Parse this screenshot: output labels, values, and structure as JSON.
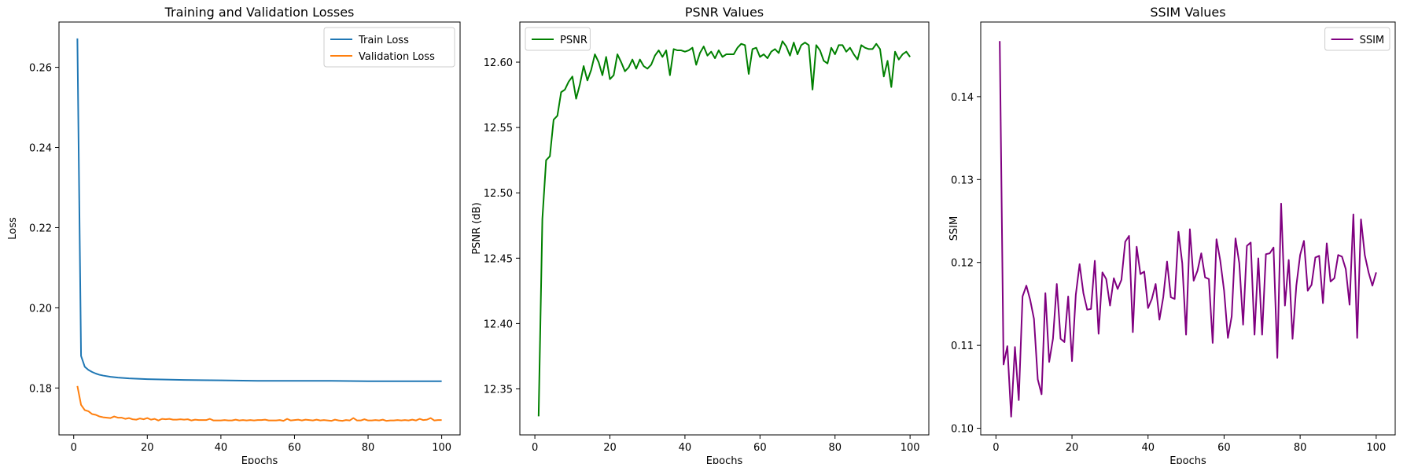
{
  "chart_data": [
    {
      "type": "line",
      "title": "Training and Validation Losses",
      "xlabel": "Epochs",
      "ylabel": "Loss",
      "xlim": [
        -4,
        105
      ],
      "ylim": [
        0.1683,
        0.2713
      ],
      "xticks": [
        0,
        20,
        40,
        60,
        80,
        100
      ],
      "yticks": [
        0.18,
        0.2,
        0.22,
        0.24,
        0.26
      ],
      "tick_decimals": 2,
      "grid": false,
      "legend_position": "upper right",
      "series": [
        {
          "name": "Train Loss",
          "color": "#1f77b4",
          "x": [
            1,
            2,
            3,
            4,
            5,
            6,
            7,
            8,
            10,
            12,
            15,
            20,
            25,
            30,
            40,
            50,
            60,
            70,
            80,
            90,
            100
          ],
          "y": [
            0.2672,
            0.188,
            0.1853,
            0.1845,
            0.184,
            0.1836,
            0.1833,
            0.1831,
            0.1828,
            0.1826,
            0.1824,
            0.1822,
            0.1821,
            0.182,
            0.1819,
            0.1818,
            0.1818,
            0.1818,
            0.1817,
            0.1817,
            0.1817
          ]
        },
        {
          "name": "Validation Loss",
          "color": "#ff7f0e",
          "x": [
            1,
            2,
            3,
            4,
            5,
            6,
            7,
            8,
            9,
            10,
            11,
            12,
            13,
            14,
            15,
            16,
            17,
            18,
            19,
            20,
            21,
            22,
            23,
            24,
            25,
            26,
            27,
            28,
            29,
            30,
            31,
            32,
            33,
            34,
            35,
            36,
            37,
            38,
            39,
            40,
            41,
            42,
            43,
            44,
            45,
            46,
            47,
            48,
            49,
            50,
            51,
            52,
            53,
            54,
            55,
            56,
            57,
            58,
            59,
            60,
            61,
            62,
            63,
            64,
            65,
            66,
            67,
            68,
            69,
            70,
            71,
            72,
            73,
            74,
            75,
            76,
            77,
            78,
            79,
            80,
            81,
            82,
            83,
            84,
            85,
            86,
            87,
            88,
            89,
            90,
            91,
            92,
            93,
            94,
            95,
            96,
            97,
            98,
            99,
            100
          ],
          "y": [
            0.1805,
            0.1758,
            0.1745,
            0.1742,
            0.1735,
            0.1733,
            0.1729,
            0.1727,
            0.1726,
            0.1725,
            0.1729,
            0.1726,
            0.1726,
            0.1723,
            0.1725,
            0.1722,
            0.1721,
            0.1724,
            0.1722,
            0.1725,
            0.1721,
            0.1723,
            0.1719,
            0.1723,
            0.1722,
            0.1723,
            0.1721,
            0.1721,
            0.1722,
            0.1721,
            0.1722,
            0.1719,
            0.1721,
            0.172,
            0.172,
            0.172,
            0.1723,
            0.1719,
            0.1719,
            0.1719,
            0.172,
            0.1719,
            0.1719,
            0.1721,
            0.1719,
            0.172,
            0.1719,
            0.172,
            0.1719,
            0.172,
            0.172,
            0.1721,
            0.1719,
            0.1719,
            0.1719,
            0.172,
            0.1718,
            0.1723,
            0.1719,
            0.172,
            0.1721,
            0.1719,
            0.1721,
            0.172,
            0.1719,
            0.1721,
            0.1719,
            0.172,
            0.1719,
            0.1718,
            0.1721,
            0.1719,
            0.1718,
            0.172,
            0.1719,
            0.1725,
            0.1719,
            0.1719,
            0.1722,
            0.1719,
            0.1719,
            0.172,
            0.1719,
            0.1721,
            0.1718,
            0.1719,
            0.1719,
            0.172,
            0.1719,
            0.172,
            0.1719,
            0.1721,
            0.1719,
            0.1723,
            0.172,
            0.1721,
            0.1725,
            0.1719,
            0.172,
            0.172
          ]
        }
      ]
    },
    {
      "type": "line",
      "title": "PSNR Values",
      "xlabel": "Epochs",
      "ylabel": "PSNR (dB)",
      "xlim": [
        -4,
        105
      ],
      "ylim": [
        12.3148,
        12.6307
      ],
      "xticks": [
        0,
        20,
        40,
        60,
        80,
        100
      ],
      "yticks": [
        12.35,
        12.4,
        12.45,
        12.5,
        12.55,
        12.6
      ],
      "tick_decimals": 2,
      "grid": false,
      "legend_position": "upper left",
      "series": [
        {
          "name": "PSNR",
          "color": "#008000",
          "x": [
            1,
            2,
            3,
            4,
            5,
            6,
            7,
            8,
            9,
            10,
            11,
            12,
            13,
            14,
            15,
            16,
            17,
            18,
            19,
            20,
            21,
            22,
            23,
            24,
            25,
            26,
            27,
            28,
            29,
            30,
            31,
            32,
            33,
            34,
            35,
            36,
            37,
            38,
            39,
            40,
            41,
            42,
            43,
            44,
            45,
            46,
            47,
            48,
            49,
            50,
            51,
            52,
            53,
            54,
            55,
            56,
            57,
            58,
            59,
            60,
            61,
            62,
            63,
            64,
            65,
            66,
            67,
            68,
            69,
            70,
            71,
            72,
            73,
            74,
            75,
            76,
            77,
            78,
            79,
            80,
            81,
            82,
            83,
            84,
            85,
            86,
            87,
            88,
            89,
            90,
            91,
            92,
            93,
            94,
            95,
            96,
            97,
            98,
            99,
            100
          ],
          "y": [
            12.329,
            12.48,
            12.525,
            12.528,
            12.556,
            12.559,
            12.577,
            12.579,
            12.585,
            12.589,
            12.572,
            12.583,
            12.597,
            12.586,
            12.594,
            12.606,
            12.6,
            12.59,
            12.604,
            12.587,
            12.59,
            12.606,
            12.6,
            12.593,
            12.596,
            12.602,
            12.595,
            12.602,
            12.597,
            12.595,
            12.598,
            12.605,
            12.609,
            12.604,
            12.609,
            12.59,
            12.61,
            12.609,
            12.609,
            12.608,
            12.609,
            12.611,
            12.598,
            12.607,
            12.612,
            12.605,
            12.608,
            12.603,
            12.609,
            12.604,
            12.606,
            12.606,
            12.606,
            12.611,
            12.614,
            12.613,
            12.591,
            12.61,
            12.611,
            12.604,
            12.606,
            12.603,
            12.608,
            12.61,
            12.607,
            12.616,
            12.612,
            12.605,
            12.615,
            12.606,
            12.613,
            12.615,
            12.613,
            12.579,
            12.613,
            12.609,
            12.601,
            12.599,
            12.611,
            12.606,
            12.613,
            12.613,
            12.608,
            12.611,
            12.606,
            12.602,
            12.613,
            12.611,
            12.61,
            12.61,
            12.614,
            12.61,
            12.589,
            12.601,
            12.581,
            12.608,
            12.602,
            12.606,
            12.608,
            12.604
          ]
        }
      ]
    },
    {
      "type": "line",
      "title": "SSIM Values",
      "xlabel": "Epochs",
      "ylabel": "SSIM",
      "xlim": [
        -4,
        105
      ],
      "ylim": [
        0.0992,
        0.149
      ],
      "xticks": [
        0,
        20,
        40,
        60,
        80,
        100
      ],
      "yticks": [
        0.1,
        0.11,
        0.12,
        0.13,
        0.14
      ],
      "tick_decimals": 2,
      "grid": false,
      "legend_position": "upper right",
      "series": [
        {
          "name": "SSIM",
          "color": "#800080",
          "x": [
            1,
            2,
            3,
            4,
            5,
            6,
            7,
            8,
            9,
            10,
            11,
            12,
            13,
            14,
            15,
            16,
            17,
            18,
            19,
            20,
            21,
            22,
            23,
            24,
            25,
            26,
            27,
            28,
            29,
            30,
            31,
            32,
            33,
            34,
            35,
            36,
            37,
            38,
            39,
            40,
            41,
            42,
            43,
            44,
            45,
            46,
            47,
            48,
            49,
            50,
            51,
            52,
            53,
            54,
            55,
            56,
            57,
            58,
            59,
            60,
            61,
            62,
            63,
            64,
            65,
            66,
            67,
            68,
            69,
            70,
            71,
            72,
            73,
            74,
            75,
            76,
            77,
            78,
            79,
            80,
            81,
            82,
            83,
            84,
            85,
            86,
            87,
            88,
            89,
            90,
            91,
            92,
            93,
            94,
            95,
            96,
            97,
            98,
            99,
            100
          ],
          "y": [
            0.1467,
            0.1077,
            0.1099,
            0.1014,
            0.1098,
            0.1034,
            0.1159,
            0.1172,
            0.1155,
            0.1132,
            0.1059,
            0.1041,
            0.1163,
            0.108,
            0.1108,
            0.1174,
            0.1108,
            0.1104,
            0.1159,
            0.1081,
            0.1161,
            0.1198,
            0.1163,
            0.1143,
            0.1144,
            0.1202,
            0.1114,
            0.1188,
            0.118,
            0.1148,
            0.1181,
            0.1168,
            0.1179,
            0.1225,
            0.1232,
            0.1116,
            0.1219,
            0.1186,
            0.1189,
            0.1145,
            0.1156,
            0.1174,
            0.1131,
            0.1158,
            0.1201,
            0.1158,
            0.1156,
            0.1237,
            0.1199,
            0.1113,
            0.124,
            0.1178,
            0.119,
            0.1211,
            0.1182,
            0.118,
            0.1103,
            0.1228,
            0.1202,
            0.1166,
            0.1109,
            0.1135,
            0.1229,
            0.1199,
            0.1125,
            0.122,
            0.1224,
            0.1113,
            0.1205,
            0.1113,
            0.121,
            0.1211,
            0.1218,
            0.1085,
            0.1271,
            0.1148,
            0.1203,
            0.1108,
            0.1172,
            0.1209,
            0.1226,
            0.1166,
            0.1173,
            0.1206,
            0.1208,
            0.1151,
            0.1223,
            0.1177,
            0.1181,
            0.1209,
            0.1207,
            0.1192,
            0.1149,
            0.1258,
            0.1109,
            0.1252,
            0.1209,
            0.1188,
            0.1172,
            0.1188
          ]
        }
      ]
    }
  ]
}
